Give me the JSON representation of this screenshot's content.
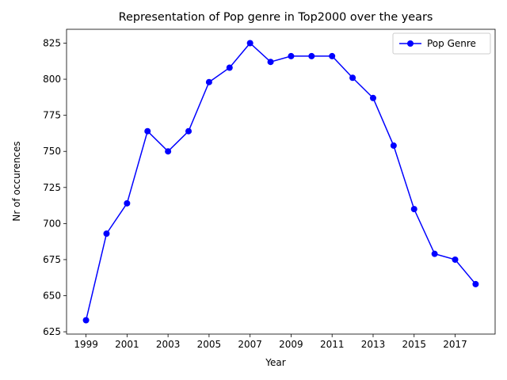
{
  "chart_data": {
    "type": "line",
    "title": "Representation of Pop genre in Top2000 over the years",
    "xlabel": "Year",
    "ylabel": "Nr of occurences",
    "x": [
      1999,
      2000,
      2001,
      2002,
      2003,
      2004,
      2005,
      2006,
      2007,
      2008,
      2009,
      2010,
      2011,
      2012,
      2013,
      2014,
      2015,
      2016,
      2017,
      2018
    ],
    "series": [
      {
        "name": "Pop Genre",
        "color": "#0000ff",
        "marker": "circle",
        "values": [
          633,
          693,
          714,
          764,
          750,
          764,
          798,
          808,
          825,
          812,
          816,
          816,
          816,
          801,
          787,
          754,
          710,
          679,
          675,
          658
        ]
      }
    ],
    "xticks": [
      "1999",
      "2001",
      "2003",
      "2005",
      "2007",
      "2009",
      "2011",
      "2013",
      "2015",
      "2017"
    ],
    "yticks": [
      "625",
      "650",
      "675",
      "700",
      "725",
      "750",
      "775",
      "800",
      "825"
    ],
    "xlim": [
      1998.05,
      2018.95
    ],
    "ylim": [
      623.4,
      834.6
    ],
    "grid": false,
    "legend": {
      "position": "top-right",
      "entries": [
        "Pop Genre"
      ]
    }
  }
}
